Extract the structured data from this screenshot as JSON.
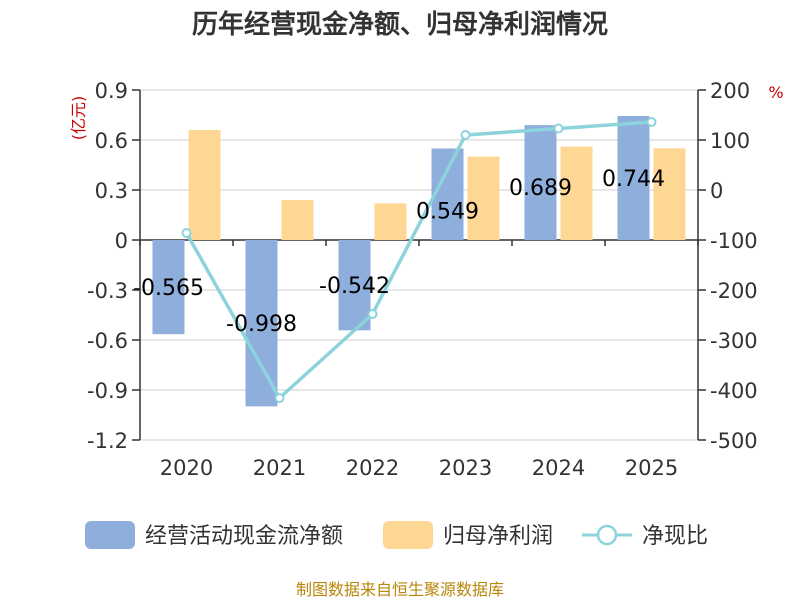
{
  "chart_data": {
    "type": "bar",
    "title": "历年经营现金净额、归母净利润情况",
    "categories": [
      "2020",
      "2021",
      "2022",
      "2023",
      "2024",
      "2025"
    ],
    "series": [
      {
        "name": "经营活动现金流净额",
        "type": "bar",
        "axis": "left",
        "color": "#8eaedc",
        "values": [
          -0.565,
          -0.998,
          -0.542,
          0.549,
          0.689,
          0.744
        ],
        "labels": [
          "-0.565",
          "-0.998",
          "-0.542",
          "0.549",
          "0.689",
          "0.744"
        ]
      },
      {
        "name": "归母净利润",
        "type": "bar",
        "axis": "left",
        "color": "#fed794",
        "values": [
          0.66,
          0.24,
          0.22,
          0.5,
          0.56,
          0.55
        ]
      },
      {
        "name": "净现比",
        "type": "line",
        "axis": "right",
        "color": "#8dd3dc",
        "values": [
          -86,
          -416,
          -248,
          110,
          123,
          136
        ]
      }
    ],
    "yleft": {
      "label": "(亿元)",
      "ylim": [
        -1.2,
        0.9
      ],
      "ticks": [
        "0.9",
        "0.6",
        "0.3",
        "0",
        "-0.3",
        "-0.6",
        "-0.9",
        "-1.2"
      ]
    },
    "yright": {
      "label": "%",
      "ylim": [
        -500,
        200
      ],
      "ticks": [
        "200",
        "100",
        "0",
        "-100",
        "-200",
        "-300",
        "-400",
        "-500"
      ]
    },
    "legend_position": "bottom",
    "source": "制图数据来自恒生聚源数据库"
  }
}
